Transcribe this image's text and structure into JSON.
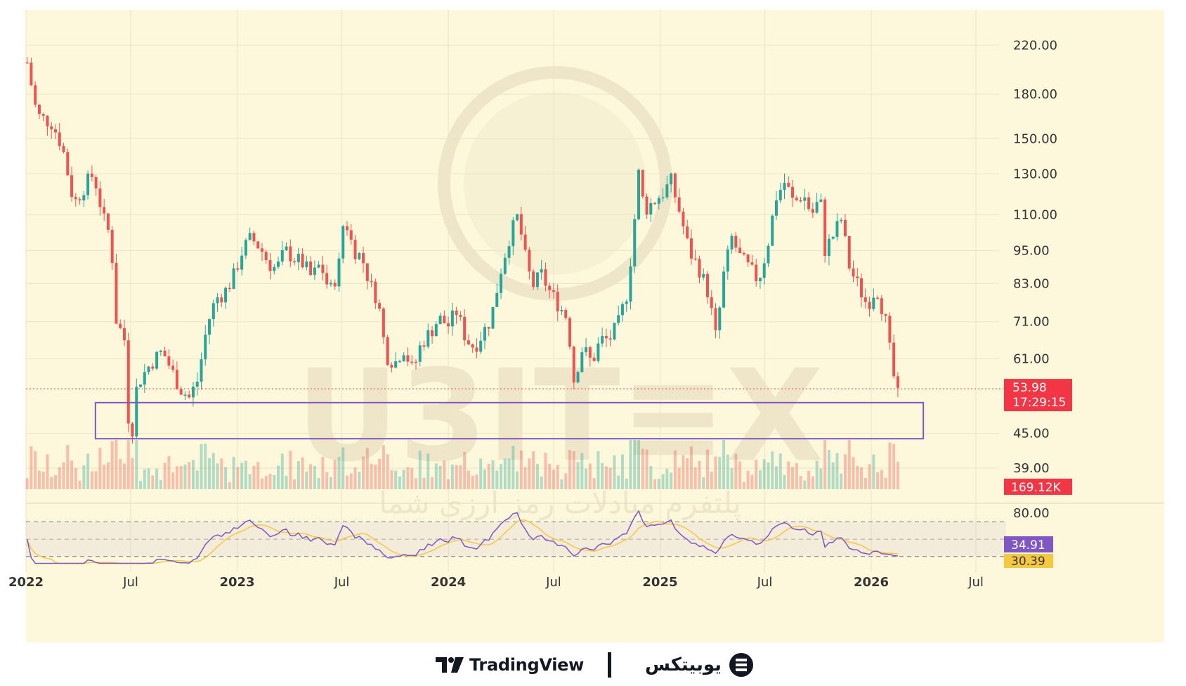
{
  "chart_data": {
    "type": "candlestick",
    "y_scale": "log",
    "price_axis_ticks": [
      "220.00",
      "180.00",
      "150.00",
      "130.00",
      "110.00",
      "95.00",
      "83.00",
      "71.00",
      "61.00",
      "45.00",
      "39.00"
    ],
    "time_axis_ticks": [
      {
        "label": "2022",
        "year": true
      },
      {
        "label": "Jul",
        "year": false
      },
      {
        "label": "2023",
        "year": true
      },
      {
        "label": "Jul",
        "year": false
      },
      {
        "label": "2024",
        "year": true
      },
      {
        "label": "Jul",
        "year": false
      },
      {
        "label": "2025",
        "year": true
      },
      {
        "label": "Jul",
        "year": false
      },
      {
        "label": "2026",
        "year": true
      },
      {
        "label": "Jul",
        "year": false
      }
    ],
    "ylim": [
      36,
      240
    ],
    "series_close": [
      [
        "2022-01-03",
        205
      ],
      [
        "2022-01-20",
        165
      ],
      [
        "2022-02-15",
        160
      ],
      [
        "2022-03-05",
        145
      ],
      [
        "2022-03-25",
        115
      ],
      [
        "2022-04-15",
        125
      ],
      [
        "2022-04-28",
        130
      ],
      [
        "2022-05-15",
        108
      ],
      [
        "2022-05-28",
        100
      ],
      [
        "2022-06-05",
        72
      ],
      [
        "2022-06-20",
        66
      ],
      [
        "2022-06-30",
        42
      ],
      [
        "2022-07-12",
        55
      ],
      [
        "2022-08-05",
        60
      ],
      [
        "2022-08-25",
        63
      ],
      [
        "2022-09-10",
        58
      ],
      [
        "2022-09-25",
        54
      ],
      [
        "2022-10-10",
        52
      ],
      [
        "2022-10-25",
        56
      ],
      [
        "2022-11-10",
        70
      ],
      [
        "2022-11-25",
        78
      ],
      [
        "2022-12-10",
        80
      ],
      [
        "2022-12-25",
        85
      ],
      [
        "2023-01-10",
        95
      ],
      [
        "2023-01-25",
        100
      ],
      [
        "2023-02-10",
        96
      ],
      [
        "2023-02-25",
        90
      ],
      [
        "2023-03-10",
        88
      ],
      [
        "2023-03-25",
        95
      ],
      [
        "2023-04-10",
        92
      ],
      [
        "2023-04-25",
        90
      ],
      [
        "2023-05-10",
        85
      ],
      [
        "2023-05-25",
        90
      ],
      [
        "2023-06-10",
        80
      ],
      [
        "2023-06-25",
        88
      ],
      [
        "2023-07-05",
        110
      ],
      [
        "2023-07-20",
        96
      ],
      [
        "2023-08-05",
        92
      ],
      [
        "2023-08-20",
        82
      ],
      [
        "2023-09-01",
        78
      ],
      [
        "2023-09-15",
        62
      ],
      [
        "2023-10-01",
        60
      ],
      [
        "2023-10-15",
        64
      ],
      [
        "2023-11-01",
        58
      ],
      [
        "2023-11-15",
        65
      ],
      [
        "2023-12-01",
        68
      ],
      [
        "2023-12-15",
        72
      ],
      [
        "2024-01-01",
        70
      ],
      [
        "2024-01-15",
        74
      ],
      [
        "2024-02-01",
        66
      ],
      [
        "2024-02-15",
        64
      ],
      [
        "2024-03-01",
        68
      ],
      [
        "2024-03-15",
        72
      ],
      [
        "2024-04-01",
        88
      ],
      [
        "2024-04-15",
        100
      ],
      [
        "2024-05-01",
        110
      ],
      [
        "2024-05-10",
        95
      ],
      [
        "2024-05-25",
        82
      ],
      [
        "2024-06-10",
        86
      ],
      [
        "2024-06-25",
        80
      ],
      [
        "2024-07-10",
        76
      ],
      [
        "2024-07-25",
        72
      ],
      [
        "2024-08-05",
        56
      ],
      [
        "2024-08-20",
        64
      ],
      [
        "2024-09-05",
        60
      ],
      [
        "2024-09-20",
        66
      ],
      [
        "2024-10-05",
        66
      ],
      [
        "2024-10-20",
        70
      ],
      [
        "2024-11-05",
        80
      ],
      [
        "2024-11-15",
        100
      ],
      [
        "2024-11-25",
        130
      ],
      [
        "2024-12-05",
        112
      ],
      [
        "2024-12-20",
        116
      ],
      [
        "2025-01-05",
        120
      ],
      [
        "2025-01-20",
        126
      ],
      [
        "2025-02-05",
        110
      ],
      [
        "2025-02-20",
        95
      ],
      [
        "2025-03-10",
        88
      ],
      [
        "2025-03-25",
        80
      ],
      [
        "2025-04-08",
        66
      ],
      [
        "2025-04-20",
        85
      ],
      [
        "2025-05-05",
        100
      ],
      [
        "2025-05-20",
        92
      ],
      [
        "2025-06-05",
        88
      ],
      [
        "2025-06-20",
        84
      ],
      [
        "2025-07-05",
        96
      ],
      [
        "2025-07-20",
        118
      ],
      [
        "2025-08-05",
        126
      ],
      [
        "2025-08-20",
        115
      ],
      [
        "2025-09-05",
        120
      ],
      [
        "2025-09-20",
        110
      ],
      [
        "2025-10-05",
        118
      ],
      [
        "2025-10-12",
        95
      ],
      [
        "2025-10-25",
        100
      ],
      [
        "2025-11-10",
        108
      ],
      [
        "2025-11-25",
        88
      ],
      [
        "2025-12-10",
        82
      ],
      [
        "2025-12-25",
        76
      ],
      [
        "2026-01-10",
        82
      ],
      [
        "2026-01-25",
        72
      ],
      [
        "2026-02-05",
        60
      ],
      [
        "2026-02-15",
        52
      ],
      [
        "2026-02-20",
        53.98
      ]
    ],
    "support_zone": {
      "price_low": 44,
      "price_high": 51,
      "start": "2022-05-01",
      "end": "2026-04-01"
    },
    "current_price": {
      "value": "53.98",
      "countdown": "17:29:15",
      "color": "#f23645"
    },
    "volume_label": "169.12K",
    "rsi": {
      "ticks": [
        "80.00"
      ],
      "upper_band": 70,
      "lower_band": 30,
      "value": "34.91",
      "ma_value": "30.39",
      "line_color": "#7e57c2",
      "ma_color": "#f5c842"
    },
    "colors": {
      "up": "#26a69a",
      "down": "#ef5350",
      "zone": "#7e57c2",
      "background": "#fdf8dc"
    }
  },
  "watermark": {
    "letters": "U3IT≡X",
    "tagline": "پلتفرم مبادلات رمز ارزی شما"
  },
  "footer": {
    "tradingview_label": "TradingView",
    "ubitex_label": "یوبیتکس"
  }
}
